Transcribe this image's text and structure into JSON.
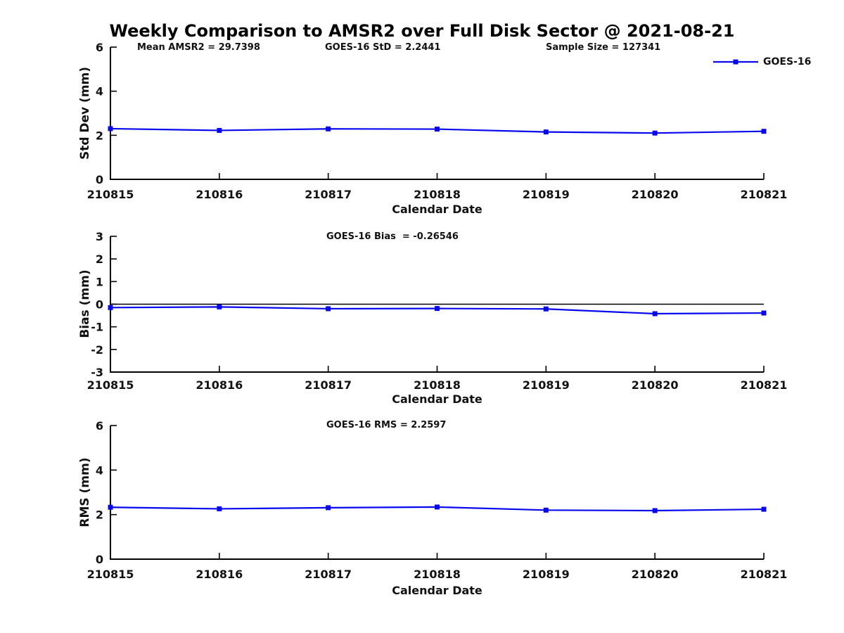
{
  "title": "Weekly Comparison to AMSR2 over Full Disk Sector @ 2021-08-21",
  "colors": {
    "series": "#0808ee",
    "axis": "#000000",
    "text": "#111111"
  },
  "chart_data": [
    {
      "name": "std-dev",
      "type": "line",
      "title": "",
      "annotations": [
        "Mean AMSR2 = 29.7398",
        "GOES-16 StD = 2.2441",
        "Sample Size = 127341"
      ],
      "ylabel": "Std Dev (mm)",
      "xlabel": "Calendar Date",
      "ylim": [
        0,
        6
      ],
      "yticks": [
        0,
        2,
        4,
        6
      ],
      "categories": [
        "210815",
        "210816",
        "210817",
        "210818",
        "210819",
        "210820",
        "210821"
      ],
      "series": [
        {
          "name": "GOES-16",
          "values": [
            2.3,
            2.22,
            2.29,
            2.28,
            2.15,
            2.1,
            2.18
          ]
        }
      ],
      "legend_position": "top-right",
      "grid": false
    },
    {
      "name": "bias",
      "type": "line",
      "title": "GOES-16 Bias  = -0.26546",
      "ylabel": "Bias (mm)",
      "xlabel": "Calendar Date",
      "ylim": [
        -3,
        3
      ],
      "yticks": [
        3,
        2,
        1,
        0,
        -1,
        -2,
        -3
      ],
      "zero_line": true,
      "categories": [
        "210815",
        "210816",
        "210817",
        "210818",
        "210819",
        "210820",
        "210821"
      ],
      "series": [
        {
          "name": "GOES-16",
          "values": [
            -0.15,
            -0.12,
            -0.2,
            -0.19,
            -0.21,
            -0.42,
            -0.39
          ]
        }
      ],
      "grid": false
    },
    {
      "name": "rms",
      "type": "line",
      "title": "GOES-16 RMS = 2.2597",
      "ylabel": "RMS (mm)",
      "xlabel": "Calendar Date",
      "ylim": [
        0,
        6
      ],
      "yticks": [
        0,
        2,
        4,
        6
      ],
      "categories": [
        "210815",
        "210816",
        "210817",
        "210818",
        "210819",
        "210820",
        "210821"
      ],
      "series": [
        {
          "name": "GOES-16",
          "values": [
            2.33,
            2.26,
            2.31,
            2.34,
            2.2,
            2.18,
            2.24
          ]
        }
      ],
      "grid": false
    }
  ]
}
